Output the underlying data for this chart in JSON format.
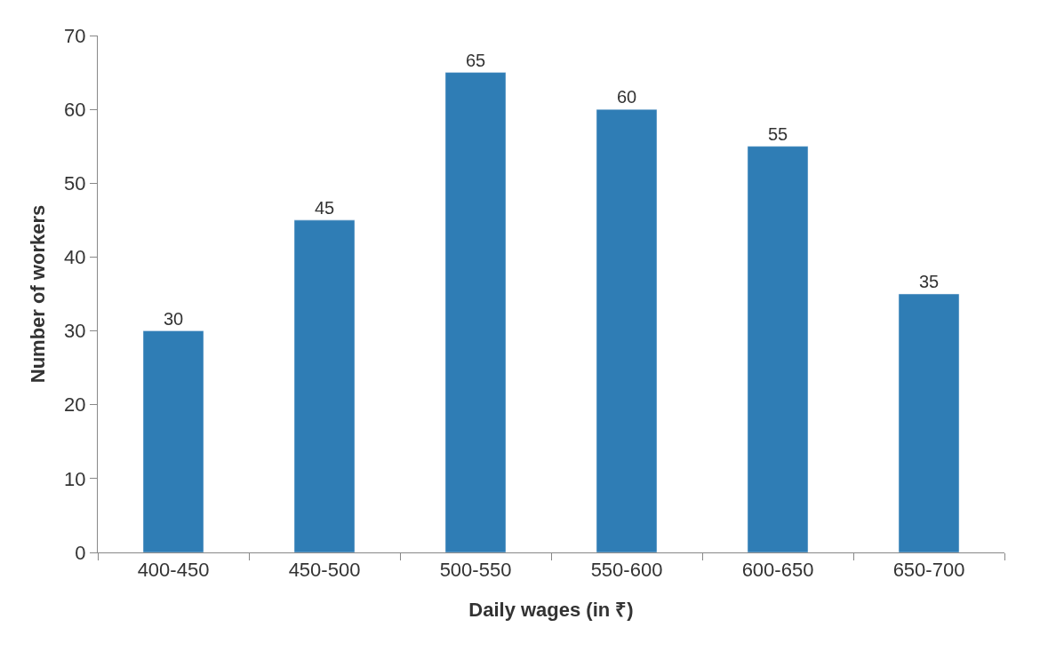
{
  "chart_data": {
    "type": "bar",
    "xlabel": "Daily wages (in ₹)",
    "ylabel": "Number of workers",
    "categories": [
      "400-450",
      "450-500",
      "500-550",
      "550-600",
      "600-650",
      "650-700"
    ],
    "values": [
      30,
      45,
      65,
      60,
      55,
      35
    ],
    "color": "#2f7db5",
    "ylim": [
      0,
      70
    ],
    "yticks": [
      0,
      10,
      20,
      30,
      40,
      50,
      60,
      70
    ],
    "data_labels": true
  }
}
